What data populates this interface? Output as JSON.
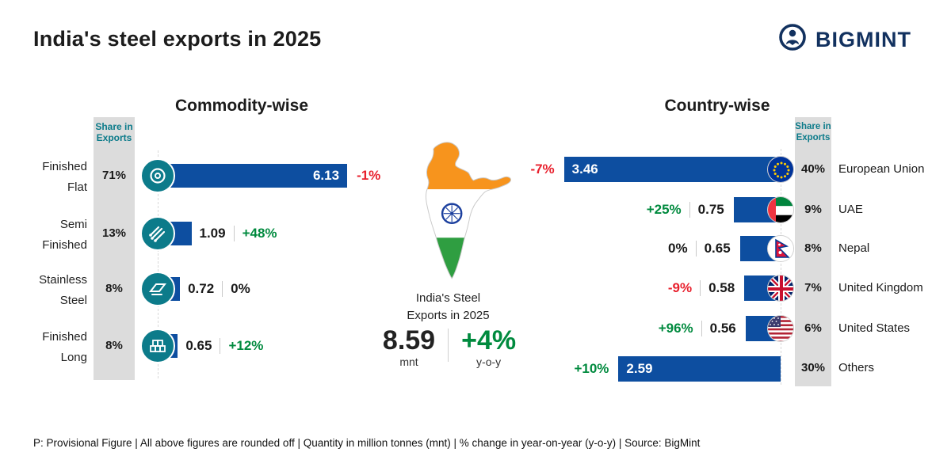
{
  "page": {
    "title": "India's steel exports in 2025"
  },
  "brand": {
    "name": "BIGMINT",
    "logo_color": "#12315f"
  },
  "colors": {
    "bar_blue": "#0d4ea0",
    "icon_teal": "#0c7b8a",
    "positive_green": "#008a3e",
    "negative_red": "#e8212e",
    "share_panel_gray": "#dcdcdc",
    "share_header_teal": "#0c7b8a",
    "saffron": "#F7941D",
    "india_green": "#2f9e41",
    "chakra_navy": "#1b3f9e"
  },
  "center": {
    "caption_line1": "India's Steel",
    "caption_line2": "Exports in 2025",
    "total_value": "8.59",
    "total_unit": "mnt",
    "total_change": "+4%",
    "total_change_unit": "y-o-y"
  },
  "commodity": {
    "title": "Commodity-wise",
    "share_header_line1": "Share in",
    "share_header_line2": "Exports",
    "rows": [
      {
        "label_line1": "Finished",
        "label_line2": "Flat",
        "share": "71%",
        "value": "6.13",
        "value_num": 6.13,
        "change": "-1%",
        "icon": "steel-coil-icon"
      },
      {
        "label_line1": "Semi",
        "label_line2": "Finished",
        "share": "13%",
        "value": "1.09",
        "value_num": 1.09,
        "change": "+48%",
        "icon": "round-bars-icon"
      },
      {
        "label_line1": "Stainless",
        "label_line2": "Steel",
        "share": "8%",
        "value": "0.72",
        "value_num": 0.72,
        "change": "0%",
        "icon": "steel-sheet-icon"
      },
      {
        "label_line1": "Finished",
        "label_line2": "Long",
        "share": "8%",
        "value": "0.65",
        "value_num": 0.65,
        "change": "+12%",
        "icon": "beam-bundle-icon"
      }
    ]
  },
  "country": {
    "title": "Country-wise",
    "share_header_line1": "Share in",
    "share_header_line2": "Exports",
    "rows": [
      {
        "name": "European Union",
        "share": "40%",
        "value": "3.46",
        "value_num": 3.46,
        "change": "-7%",
        "flag": "eu-flag"
      },
      {
        "name": "UAE",
        "share": "9%",
        "value": "0.75",
        "value_num": 0.75,
        "change": "+25%",
        "flag": "uae-flag"
      },
      {
        "name": "Nepal",
        "share": "8%",
        "value": "0.65",
        "value_num": 0.65,
        "change": "0%",
        "flag": "nepal-flag"
      },
      {
        "name": "United Kingdom",
        "share": "7%",
        "value": "0.58",
        "value_num": 0.58,
        "change": "-9%",
        "flag": "uk-flag"
      },
      {
        "name": "United States",
        "share": "6%",
        "value": "0.56",
        "value_num": 0.56,
        "change": "+96%",
        "flag": "us-flag"
      },
      {
        "name": "Others",
        "share": "30%",
        "value": "2.59",
        "value_num": 2.59,
        "change": "+10%",
        "flag": ""
      }
    ]
  },
  "footer": {
    "note": "P: Provisional Figure  |  All above figures are rounded off  |  Quantity in million tonnes (mnt)  |  % change in year-on-year (y-o-y)  |  Source: BigMint"
  },
  "chart_data": [
    {
      "type": "bar",
      "title": "Commodity-wise",
      "orientation": "horizontal",
      "categories": [
        "Finished Flat",
        "Semi Finished",
        "Stainless Steel",
        "Finished Long"
      ],
      "values": [
        6.13,
        1.09,
        0.72,
        0.65
      ],
      "share_of_exports": [
        "71%",
        "13%",
        "8%",
        "8%"
      ],
      "yoy_change": [
        "-1%",
        "+48%",
        "0%",
        "+12%"
      ],
      "unit": "mnt"
    },
    {
      "type": "bar",
      "title": "Country-wise",
      "orientation": "horizontal",
      "categories": [
        "European Union",
        "UAE",
        "Nepal",
        "United Kingdom",
        "United States",
        "Others"
      ],
      "values": [
        3.46,
        0.75,
        0.65,
        0.58,
        0.56,
        2.59
      ],
      "share_of_exports": [
        "40%",
        "9%",
        "8%",
        "7%",
        "6%",
        "30%"
      ],
      "yoy_change": [
        "-7%",
        "+25%",
        "0%",
        "-9%",
        "+96%",
        "+10%"
      ],
      "unit": "mnt"
    },
    {
      "type": "kpi",
      "title": "India's Steel Exports in 2025",
      "value": 8.59,
      "unit": "mnt",
      "yoy_change": "+4%"
    }
  ]
}
